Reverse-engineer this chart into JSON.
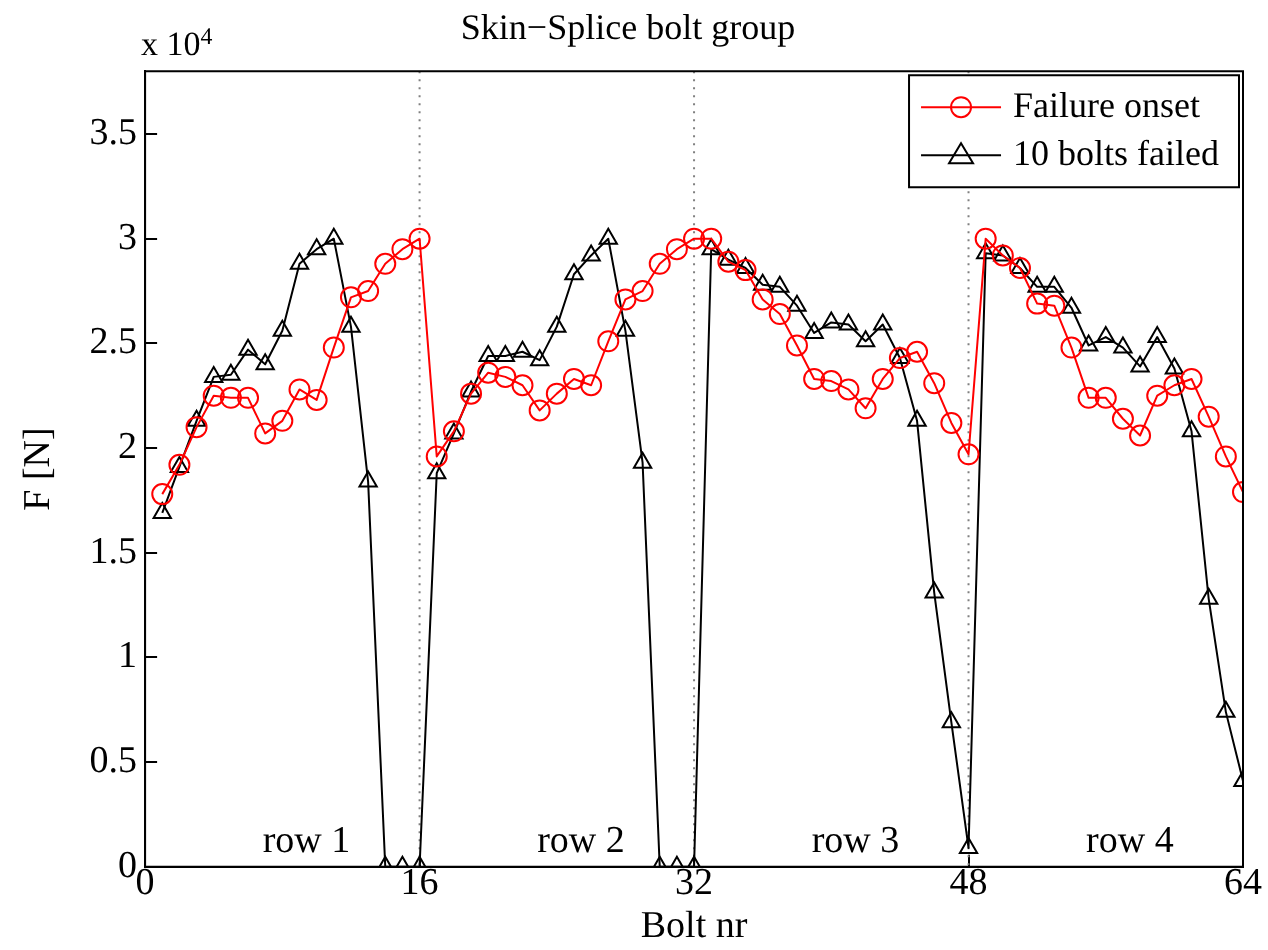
{
  "chart_data": {
    "type": "line",
    "title": "Skin−Splice bolt group",
    "xlabel": "Bolt nr",
    "ylabel": "F [N]",
    "x": [
      1,
      2,
      3,
      4,
      5,
      6,
      7,
      8,
      9,
      10,
      11,
      12,
      13,
      14,
      15,
      16,
      17,
      18,
      19,
      20,
      21,
      22,
      23,
      24,
      25,
      26,
      27,
      28,
      29,
      30,
      31,
      32,
      33,
      34,
      35,
      36,
      37,
      38,
      39,
      40,
      41,
      42,
      43,
      44,
      45,
      46,
      47,
      48,
      49,
      50,
      51,
      52,
      53,
      54,
      55,
      56,
      57,
      58,
      59,
      60,
      61,
      62,
      63,
      64
    ],
    "series": [
      {
        "name": "Failure onset",
        "color": "#ff0000",
        "marker": "circle",
        "values": [
          1.78,
          1.92,
          2.1,
          2.25,
          2.24,
          2.24,
          2.07,
          2.13,
          2.28,
          2.23,
          2.48,
          2.72,
          2.75,
          2.88,
          2.95,
          3.0,
          1.96,
          2.08,
          2.26,
          2.36,
          2.34,
          2.3,
          2.18,
          2.26,
          2.33,
          2.3,
          2.51,
          2.71,
          2.75,
          2.88,
          2.95,
          3.0,
          3.0,
          2.89,
          2.85,
          2.71,
          2.64,
          2.49,
          2.33,
          2.32,
          2.28,
          2.19,
          2.33,
          2.43,
          2.46,
          2.31,
          2.12,
          1.97,
          3.0,
          2.92,
          2.86,
          2.69,
          2.68,
          2.48,
          2.24,
          2.24,
          2.14,
          2.06,
          2.25,
          2.3,
          2.33,
          2.15,
          1.96,
          1.79
        ]
      },
      {
        "name": "10 bolts failed",
        "color": "#000000",
        "marker": "triangle",
        "values": [
          1.69,
          1.91,
          2.13,
          2.34,
          2.35,
          2.47,
          2.4,
          2.56,
          2.88,
          2.95,
          3.0,
          2.58,
          1.84,
          0,
          0,
          0,
          1.88,
          2.07,
          2.27,
          2.44,
          2.44,
          2.46,
          2.42,
          2.58,
          2.83,
          2.92,
          3.0,
          2.56,
          1.93,
          0,
          0,
          0,
          2.95,
          2.9,
          2.86,
          2.78,
          2.77,
          2.68,
          2.55,
          2.6,
          2.59,
          2.51,
          2.59,
          2.43,
          2.13,
          1.31,
          0.69,
          0.09,
          2.93,
          2.92,
          2.86,
          2.77,
          2.77,
          2.67,
          2.49,
          2.53,
          2.48,
          2.39,
          2.53,
          2.38,
          2.08,
          1.28,
          0.74,
          0.41
        ]
      }
    ],
    "xlim": [
      0,
      64
    ],
    "xticks": [
      0,
      16,
      32,
      48,
      64
    ],
    "ylim": [
      0,
      3.8
    ],
    "yticks": [
      0,
      0.5,
      1,
      1.5,
      2,
      2.5,
      3,
      3.5
    ],
    "ref_lines": [
      {
        "axis": "x",
        "value": 16,
        "color": "#808080",
        "line_style": "dotted"
      },
      {
        "axis": "x",
        "value": 32,
        "color": "#808080",
        "line_style": "dotted"
      },
      {
        "axis": "x",
        "value": 48,
        "color": "#808080",
        "line_style": "dotted"
      }
    ],
    "annotations": [
      "x 10$^{4}$",
      "row 1",
      "row 2",
      "row 3",
      "row 4"
    ],
    "legend": "top right",
    "grid": false,
    "line_style": "solid"
  }
}
